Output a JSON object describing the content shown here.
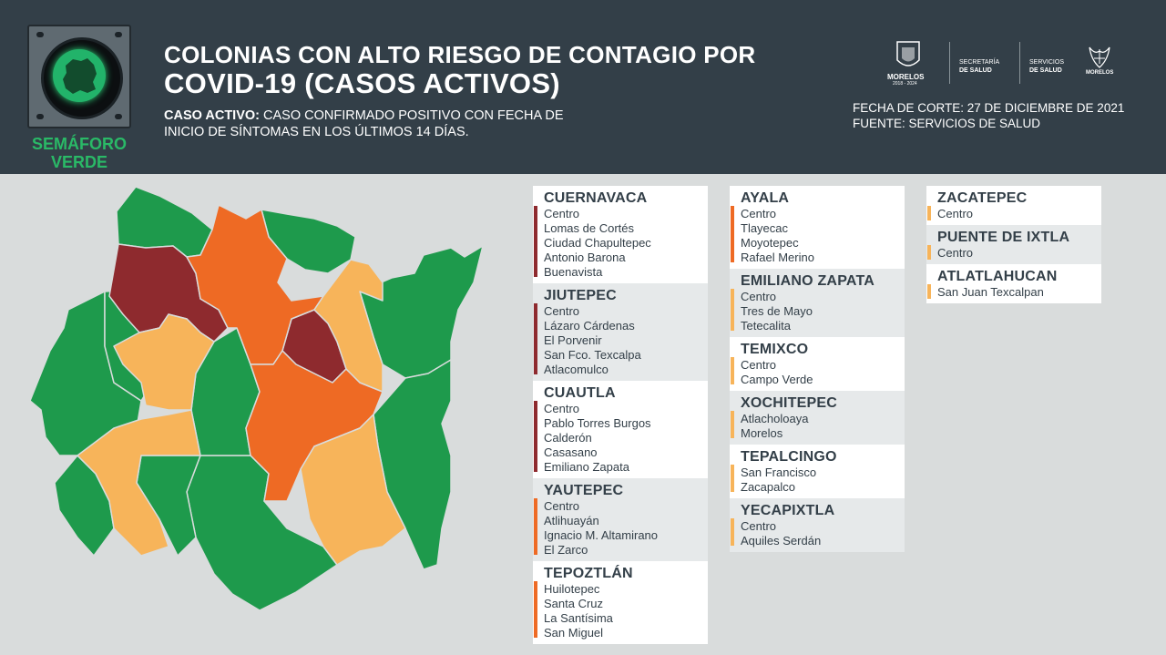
{
  "semaforo": {
    "label_line1": "SEMÁFORO",
    "label_line2": "VERDE",
    "light_color": "#22b36a"
  },
  "header": {
    "title_line1": "COLONIAS CON ALTO RIESGO DE CONTAGIO POR",
    "title_line2": "COVID-19 (CASOS ACTIVOS)",
    "definition_label": "CASO ACTIVO:",
    "definition_text": " CASO CONFIRMADO POSITIVO CON FECHA DE",
    "definition_text2": "INICIO DE SÍNTOMAS EN LOS ÚLTIMOS 14 DÍAS.",
    "cutoff": "FECHA DE CORTE: 27 DE DICIEMBRE DE 2021",
    "source": "FUENTE: SERVICIOS DE SALUD"
  },
  "logos": {
    "morelos": "MORELOS",
    "morelos_years": "2018 - 2024",
    "secretaria_line1": "SECRETARÍA",
    "secretaria_line2": "DE SALUD",
    "servicios_line1": "SERVICIOS",
    "servicios_line2": "DE SALUD",
    "morelos2": "MORELOS"
  },
  "colors": {
    "high": "#8e2a2e",
    "medium": "#ee6a24",
    "low": "#f7b45a",
    "green": "#1e9a4c",
    "background": "#d9dcdc",
    "header": "#333f48"
  },
  "municipalities": [
    {
      "city": "CUERNAVACA",
      "level": "high",
      "colonias": [
        "Centro",
        "Lomas de Cortés",
        "Ciudad Chapultepec",
        "Antonio Barona",
        "Buenavista"
      ]
    },
    {
      "city": "JIUTEPEC",
      "level": "high",
      "colonias": [
        "Centro",
        "Lázaro Cárdenas",
        "El Porvenir",
        "San Fco. Texcalpa",
        "Atlacomulco"
      ]
    },
    {
      "city": "CUAUTLA",
      "level": "high",
      "colonias": [
        "Centro",
        "Pablo Torres Burgos",
        "Calderón",
        "Casasano",
        "Emiliano Zapata"
      ]
    },
    {
      "city": "YAUTEPEC",
      "level": "medium",
      "colonias": [
        "Centro",
        "Atlihuayán",
        "Ignacio M. Altamirano",
        "El Zarco"
      ]
    },
    {
      "city": "TEPOZTLÁN",
      "level": "medium",
      "colonias": [
        "Huilotepec",
        "Santa Cruz",
        "La Santísima",
        "San Miguel"
      ]
    },
    {
      "city": "AYALA",
      "level": "medium",
      "colonias": [
        "Centro",
        "Tlayecac",
        "Moyotepec",
        "Rafael Merino"
      ]
    },
    {
      "city": "EMILIANO ZAPATA",
      "level": "low",
      "colonias": [
        "Centro",
        "Tres de Mayo",
        "Tetecalita"
      ]
    },
    {
      "city": "TEMIXCO",
      "level": "low",
      "colonias": [
        "Centro",
        "Campo Verde"
      ]
    },
    {
      "city": "XOCHITEPEC",
      "level": "low",
      "colonias": [
        "Atlacholoaya",
        "Morelos"
      ]
    },
    {
      "city": "TEPALCINGO",
      "level": "low",
      "colonias": [
        "San Francisco",
        "Zacapalco"
      ]
    },
    {
      "city": "YECAPIXTLA",
      "level": "low",
      "colonias": [
        "Centro",
        "Aquiles Serdán"
      ]
    },
    {
      "city": "ZACATEPEC",
      "level": "low",
      "colonias": [
        "Centro"
      ]
    },
    {
      "city": "PUENTE DE IXTLA",
      "level": "low",
      "colonias": [
        "Centro"
      ]
    },
    {
      "city": "ATLATLAHUCAN",
      "level": "low",
      "colonias": [
        "San Juan Texcalpan"
      ]
    }
  ]
}
